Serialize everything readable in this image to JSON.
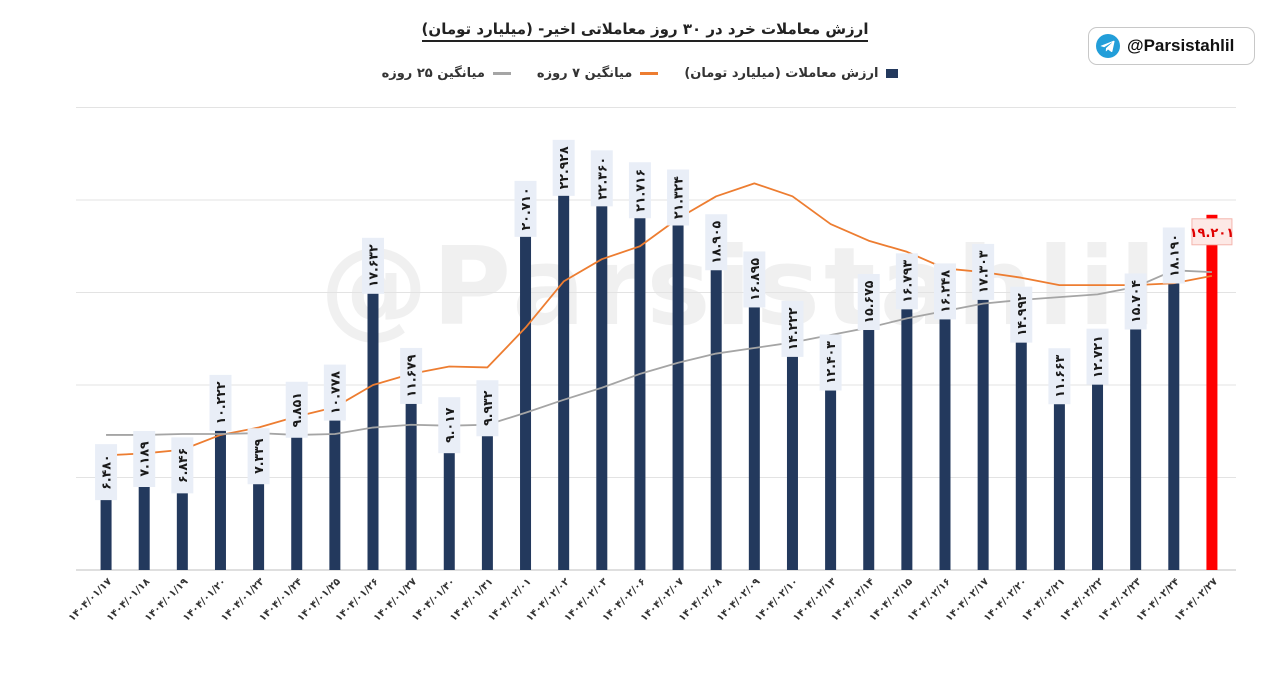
{
  "brand": {
    "handle": "@Parsistahlil",
    "icon": "telegram-icon",
    "watermark": "@Parsistahlil"
  },
  "chart_data": {
    "type": "bar",
    "title": "ارزش معاملات خرد در ۳۰ روز معاملاتی اخیر- (میلیارد تومان)",
    "xlabel": "",
    "ylabel": "",
    "ylim": [
      0,
      30
    ],
    "grid": true,
    "legend_position": "top-center",
    "categories": [
      "۱۴۰۴/۰۱/۱۷",
      "۱۴۰۴/۰۱/۱۸",
      "۱۴۰۴/۰۱/۱۹",
      "۱۴۰۴/۰۱/۲۰",
      "۱۴۰۴/۰۱/۲۳",
      "۱۴۰۴/۰۱/۲۴",
      "۱۴۰۴/۰۱/۲۵",
      "۱۴۰۴/۰۱/۲۶",
      "۱۴۰۴/۰۱/۲۷",
      "۱۴۰۴/۰۱/۳۰",
      "۱۴۰۴/۰۱/۳۱",
      "۱۴۰۴/۰۲/۰۱",
      "۱۴۰۴/۰۲/۰۲",
      "۱۴۰۴/۰۲/۰۳",
      "۱۴۰۴/۰۲/۰۶",
      "۱۴۰۴/۰۲/۰۷",
      "۱۴۰۴/۰۲/۰۸",
      "۱۴۰۴/۰۲/۰۹",
      "۱۴۰۴/۰۲/۱۰",
      "۱۴۰۴/۰۲/۱۳",
      "۱۴۰۴/۰۲/۱۴",
      "۱۴۰۴/۰۲/۱۵",
      "۱۴۰۴/۰۲/۱۶",
      "۱۴۰۴/۰۲/۱۷",
      "۱۴۰۴/۰۲/۲۰",
      "۱۴۰۴/۰۲/۲۱",
      "۱۴۰۴/۰۲/۲۲",
      "۱۴۰۴/۰۲/۲۳",
      "۱۴۰۴/۰۲/۲۴",
      "۱۴۰۴/۰۲/۲۷"
    ],
    "series": [
      {
        "name": "ارزش معاملات (میلیارد تومان)",
        "type": "bar",
        "color": "#23395d",
        "highlight_color": "#ff0000",
        "highlight_index": 29,
        "values": [
          6.48,
          7.189,
          6.846,
          10.222,
          7.339,
          9.851,
          10.778,
          17.632,
          11.679,
          9.017,
          9.932,
          20.71,
          22.928,
          22.36,
          21.716,
          21.324,
          18.905,
          16.895,
          14.222,
          12.403,
          15.675,
          16.793,
          16.248,
          17.303,
          14.992,
          11.663,
          12.721,
          15.704,
          18.19,
          19.201
        ],
        "labels": [
          "۶.۴۸۰",
          "۷.۱۸۹",
          "۶.۸۴۶",
          "۱۰.۲۲۲",
          "۷.۳۳۹",
          "۹.۸۵۱",
          "۱۰.۷۷۸",
          "۱۷.۶۳۲",
          "۱۱.۶۷۹",
          "۹.۰۱۷",
          "۹.۹۳۲",
          "۲۰.۷۱۰",
          "۲۲.۹۲۸",
          "۲۲.۳۶۰",
          "۲۱.۷۱۶",
          "۲۱.۳۲۴",
          "۱۸.۹۰۵",
          "۱۶.۸۹۵",
          "۱۴.۲۲۲",
          "۱۲.۴۰۳",
          "۱۵.۶۷۵",
          "۱۶.۷۹۳",
          "۱۶.۲۴۸",
          "۱۷.۳۰۳",
          "۱۴.۹۹۲",
          "۱۱.۶۶۳",
          "۱۲.۷۲۱",
          "۱۵.۷۰۴",
          "۱۸.۱۹۰",
          "۱۹.۲۰۱"
        ]
      },
      {
        "name": "میانگین ۷ روزه",
        "type": "line",
        "color": "#ed7d31",
        "values": [
          6.2,
          6.3,
          6.5,
          7.3,
          7.7,
          8.3,
          8.8,
          10.0,
          10.6,
          11.0,
          10.95,
          13.1,
          15.6,
          16.8,
          17.5,
          19.0,
          20.2,
          20.9,
          20.2,
          18.7,
          17.8,
          17.2,
          16.3,
          16.1,
          15.8,
          15.4,
          15.4,
          15.4,
          15.5,
          15.9
        ]
      },
      {
        "name": "میانگین ۲۵ روزه",
        "type": "line",
        "color": "#a5a5a5",
        "values": [
          7.3,
          7.3,
          7.35,
          7.35,
          7.4,
          7.3,
          7.35,
          7.7,
          7.85,
          7.8,
          7.85,
          8.5,
          9.2,
          9.85,
          10.6,
          11.2,
          11.7,
          12.0,
          12.3,
          12.7,
          13.1,
          13.6,
          14.0,
          14.4,
          14.6,
          14.75,
          14.9,
          15.3,
          16.2,
          16.1
        ]
      }
    ]
  }
}
